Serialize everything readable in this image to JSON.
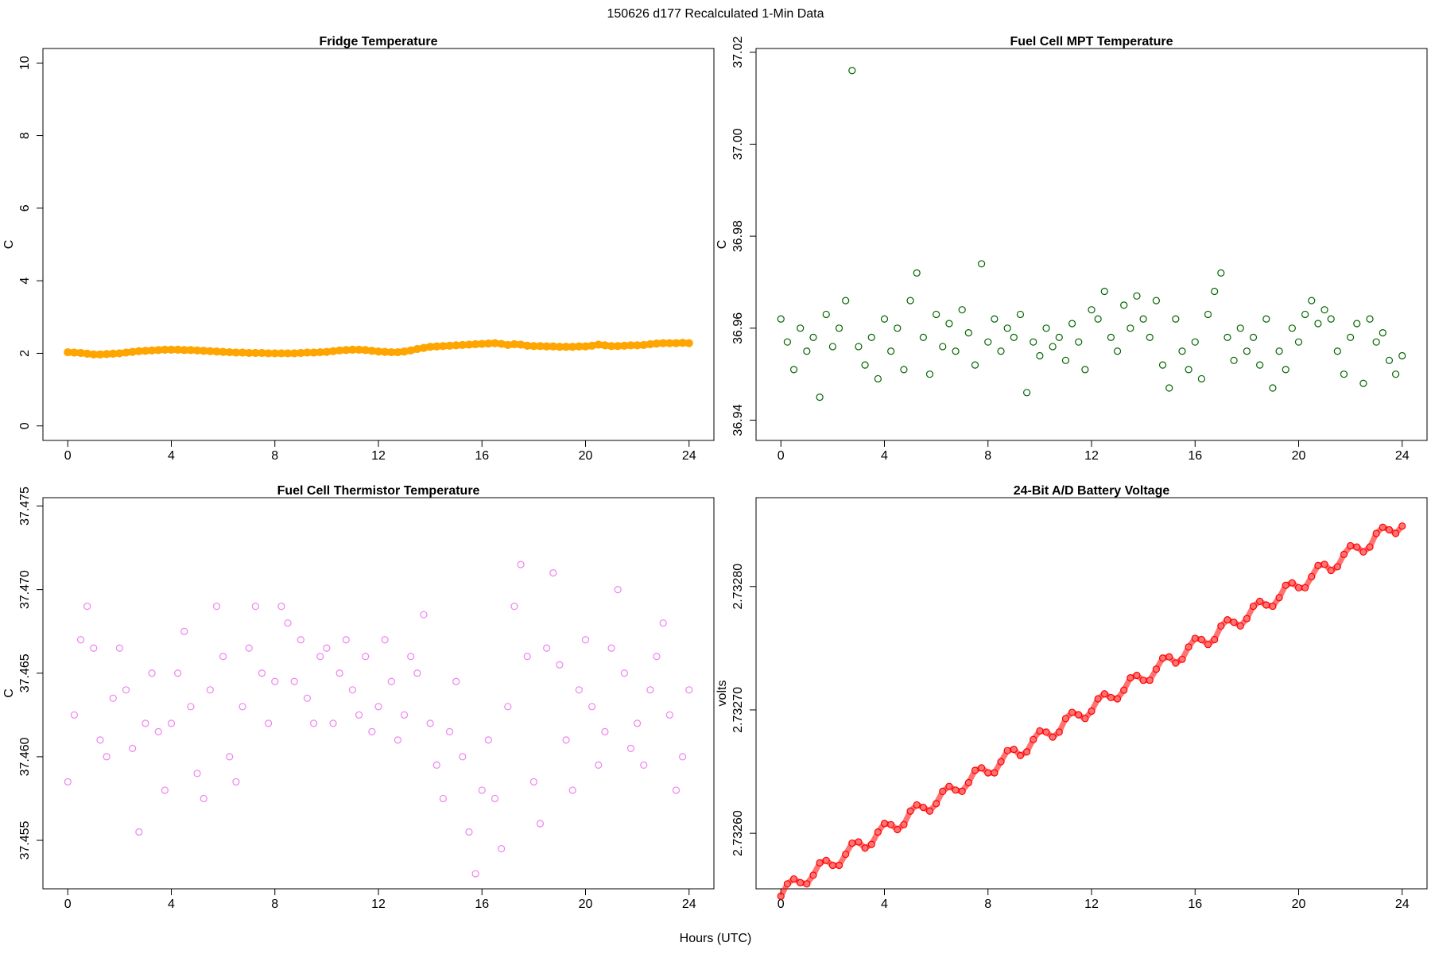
{
  "title": "150626   d177   Recalculated 1-Min Data",
  "xlabel": "Hours (UTC)",
  "chart_data": [
    {
      "type": "scatter",
      "title": "Fridge Temperature",
      "ylabel": "C",
      "color": "#ffa500",
      "marker": "filled",
      "connected": true,
      "x": [
        0,
        0.25,
        0.5,
        0.75,
        1,
        1.25,
        1.5,
        1.75,
        2,
        2.25,
        2.5,
        2.75,
        3,
        3.25,
        3.5,
        3.75,
        4,
        4.25,
        4.5,
        4.75,
        5,
        5.25,
        5.5,
        5.75,
        6,
        6.25,
        6.5,
        6.75,
        7,
        7.25,
        7.5,
        7.75,
        8,
        8.25,
        8.5,
        8.75,
        9,
        9.25,
        9.5,
        9.75,
        10,
        10.25,
        10.5,
        10.75,
        11,
        11.25,
        11.5,
        11.75,
        12,
        12.25,
        12.5,
        12.75,
        13,
        13.25,
        13.5,
        13.75,
        14,
        14.25,
        14.5,
        14.75,
        15,
        15.25,
        15.5,
        15.75,
        16,
        16.25,
        16.5,
        16.75,
        17,
        17.25,
        17.5,
        17.75,
        18,
        18.25,
        18.5,
        18.75,
        19,
        19.25,
        19.5,
        19.75,
        20,
        20.25,
        20.5,
        20.75,
        21,
        21.25,
        21.5,
        21.75,
        22,
        22.25,
        22.5,
        22.75,
        23,
        23.25,
        23.5,
        23.75,
        24
      ],
      "values": [
        2.03,
        2.02,
        2.01,
        1.99,
        1.97,
        1.97,
        1.98,
        1.99,
        2.0,
        2.02,
        2.04,
        2.06,
        2.07,
        2.08,
        2.09,
        2.1,
        2.1,
        2.1,
        2.09,
        2.09,
        2.08,
        2.07,
        2.06,
        2.05,
        2.04,
        2.03,
        2.02,
        2.02,
        2.01,
        2.01,
        2.01,
        2.0,
        2.0,
        2.0,
        2.0,
        2.0,
        2.01,
        2.02,
        2.02,
        2.03,
        2.04,
        2.06,
        2.08,
        2.09,
        2.1,
        2.1,
        2.09,
        2.07,
        2.05,
        2.04,
        2.03,
        2.03,
        2.05,
        2.08,
        2.12,
        2.15,
        2.18,
        2.19,
        2.2,
        2.21,
        2.22,
        2.23,
        2.24,
        2.25,
        2.26,
        2.27,
        2.28,
        2.26,
        2.23,
        2.25,
        2.24,
        2.21,
        2.2,
        2.2,
        2.19,
        2.19,
        2.18,
        2.18,
        2.18,
        2.19,
        2.19,
        2.21,
        2.24,
        2.22,
        2.2,
        2.2,
        2.21,
        2.22,
        2.22,
        2.23,
        2.25,
        2.27,
        2.28,
        2.28,
        2.28,
        2.29,
        2.28
      ],
      "xlim": [
        -0.96,
        24.96
      ],
      "xticks": [
        0,
        4,
        8,
        12,
        16,
        20,
        24
      ],
      "ylim": [
        -0.4,
        10.4
      ],
      "yticks": [
        0,
        2,
        4,
        6,
        8,
        10
      ]
    },
    {
      "type": "scatter",
      "title": "Fuel Cell MPT Temperature",
      "ylabel": "C",
      "color": "#006400",
      "marker": "open",
      "connected": false,
      "x": [
        0,
        0.25,
        0.5,
        0.75,
        1,
        1.25,
        1.5,
        1.75,
        2,
        2.25,
        2.5,
        2.75,
        3,
        3.25,
        3.5,
        3.75,
        4,
        4.25,
        4.5,
        4.75,
        5,
        5.25,
        5.5,
        5.75,
        6,
        6.25,
        6.5,
        6.75,
        7,
        7.25,
        7.5,
        7.75,
        8,
        8.25,
        8.5,
        8.75,
        9,
        9.25,
        9.5,
        9.75,
        10,
        10.25,
        10.5,
        10.75,
        11,
        11.25,
        11.5,
        11.75,
        12,
        12.25,
        12.5,
        12.75,
        13,
        13.25,
        13.5,
        13.75,
        14,
        14.25,
        14.5,
        14.75,
        15,
        15.25,
        15.5,
        15.75,
        16,
        16.25,
        16.5,
        16.75,
        17,
        17.25,
        17.5,
        17.75,
        18,
        18.25,
        18.5,
        18.75,
        19,
        19.25,
        19.5,
        19.75,
        20,
        20.25,
        20.5,
        20.75,
        21,
        21.25,
        21.5,
        21.75,
        22,
        22.25,
        22.5,
        22.75,
        23,
        23.25,
        23.5,
        23.75,
        24
      ],
      "values": [
        36.962,
        36.957,
        36.951,
        36.96,
        36.955,
        36.958,
        36.945,
        36.963,
        36.956,
        36.96,
        36.966,
        37.016,
        36.956,
        36.952,
        36.958,
        36.949,
        36.962,
        36.955,
        36.96,
        36.951,
        36.966,
        36.972,
        36.958,
        36.95,
        36.963,
        36.956,
        36.961,
        36.955,
        36.964,
        36.959,
        36.952,
        36.974,
        36.957,
        36.962,
        36.955,
        36.96,
        36.958,
        36.963,
        36.946,
        36.957,
        36.954,
        36.96,
        36.956,
        36.958,
        36.953,
        36.961,
        36.957,
        36.951,
        36.964,
        36.962,
        36.968,
        36.958,
        36.955,
        36.965,
        36.96,
        36.967,
        36.962,
        36.958,
        36.966,
        36.952,
        36.947,
        36.962,
        36.955,
        36.951,
        36.957,
        36.949,
        36.963,
        36.968,
        36.972,
        36.958,
        36.953,
        36.96,
        36.955,
        36.958,
        36.952,
        36.962,
        36.947,
        36.955,
        36.951,
        36.96,
        36.957,
        36.963,
        36.966,
        36.961,
        36.964,
        36.962,
        36.955,
        36.95,
        36.958,
        36.961,
        36.948,
        36.962,
        36.957,
        36.959,
        36.953,
        36.95,
        36.954
      ],
      "xlim": [
        -0.96,
        24.96
      ],
      "xticks": [
        0,
        4,
        8,
        12,
        16,
        20,
        24
      ],
      "ylim": [
        36.9356,
        37.0208
      ],
      "yticks": [
        36.94,
        36.96,
        36.98,
        {
          "value": 37.0,
          "label": "37.00"
        },
        37.02
      ]
    },
    {
      "type": "scatter",
      "title": "Fuel Cell Thermistor Temperature",
      "ylabel": "C",
      "color": "#ee82ee",
      "marker": "open",
      "connected": false,
      "x": [
        0,
        0.25,
        0.5,
        0.75,
        1,
        1.25,
        1.5,
        1.75,
        2,
        2.25,
        2.5,
        2.75,
        3,
        3.25,
        3.5,
        3.75,
        4,
        4.25,
        4.5,
        4.75,
        5,
        5.25,
        5.5,
        5.75,
        6,
        6.25,
        6.5,
        6.75,
        7,
        7.25,
        7.5,
        7.75,
        8,
        8.25,
        8.5,
        8.75,
        9,
        9.25,
        9.5,
        9.75,
        10,
        10.25,
        10.5,
        10.75,
        11,
        11.25,
        11.5,
        11.75,
        12,
        12.25,
        12.5,
        12.75,
        13,
        13.25,
        13.5,
        13.75,
        14,
        14.25,
        14.5,
        14.75,
        15,
        15.25,
        15.5,
        15.75,
        16,
        16.25,
        16.5,
        16.75,
        17,
        17.25,
        17.5,
        17.75,
        18,
        18.25,
        18.5,
        18.75,
        19,
        19.25,
        19.5,
        19.75,
        20,
        20.25,
        20.5,
        20.75,
        21,
        21.25,
        21.5,
        21.75,
        22,
        22.25,
        22.5,
        22.75,
        23,
        23.25,
        23.5,
        23.75,
        24
      ],
      "values": [
        37.4585,
        37.4625,
        37.467,
        37.469,
        37.4665,
        37.461,
        37.46,
        37.4635,
        37.4665,
        37.464,
        37.4605,
        37.4555,
        37.462,
        37.465,
        37.4615,
        37.458,
        37.462,
        37.465,
        37.4675,
        37.463,
        37.459,
        37.4575,
        37.464,
        37.469,
        37.466,
        37.46,
        37.4585,
        37.463,
        37.4665,
        37.469,
        37.465,
        37.462,
        37.4645,
        37.469,
        37.468,
        37.4645,
        37.467,
        37.4635,
        37.462,
        37.466,
        37.4665,
        37.462,
        37.465,
        37.467,
        37.464,
        37.4625,
        37.466,
        37.4615,
        37.463,
        37.467,
        37.4645,
        37.461,
        37.4625,
        37.466,
        37.465,
        37.4685,
        37.462,
        37.4595,
        37.4575,
        37.4615,
        37.4645,
        37.46,
        37.4555,
        37.453,
        37.458,
        37.461,
        37.4575,
        37.4545,
        37.463,
        37.469,
        37.4715,
        37.466,
        37.4585,
        37.456,
        37.4665,
        37.471,
        37.4655,
        37.461,
        37.458,
        37.464,
        37.467,
        37.463,
        37.4595,
        37.4615,
        37.4665,
        37.47,
        37.465,
        37.4605,
        37.462,
        37.4595,
        37.464,
        37.466,
        37.468,
        37.4625,
        37.458,
        37.46,
        37.464
      ],
      "xlim": [
        -0.96,
        24.96
      ],
      "xticks": [
        0,
        4,
        8,
        12,
        16,
        20,
        24
      ],
      "ylim": [
        37.4521,
        37.4755
      ],
      "yticks": [
        37.455,
        {
          "value": 37.46,
          "label": "37.460"
        },
        37.465,
        {
          "value": 37.47,
          "label": "37.470"
        },
        37.475
      ]
    },
    {
      "type": "scatter",
      "title": "24-Bit A/D Battery Voltage",
      "ylabel": "volts",
      "color": "#ff0000",
      "marker": "open",
      "connected": true,
      "x": [
        0,
        0.25,
        0.5,
        0.75,
        1,
        1.25,
        1.5,
        1.75,
        2,
        2.25,
        2.5,
        2.75,
        3,
        3.25,
        3.5,
        3.75,
        4,
        4.25,
        4.5,
        4.75,
        5,
        5.25,
        5.5,
        5.75,
        6,
        6.25,
        6.5,
        6.75,
        7,
        7.25,
        7.5,
        7.75,
        8,
        8.25,
        8.5,
        8.75,
        9,
        9.25,
        9.5,
        9.75,
        10,
        10.25,
        10.5,
        10.75,
        11,
        11.25,
        11.5,
        11.75,
        12,
        12.25,
        12.5,
        12.75,
        13,
        13.25,
        13.5,
        13.75,
        14,
        14.25,
        14.5,
        14.75,
        15,
        15.25,
        15.5,
        15.75,
        16,
        16.25,
        16.5,
        16.75,
        17,
        17.25,
        17.5,
        17.75,
        18,
        18.25,
        18.5,
        18.75,
        19,
        19.25,
        19.5,
        19.75,
        20,
        20.25,
        20.5,
        20.75,
        21,
        21.25,
        21.5,
        21.75,
        22,
        22.25,
        22.5,
        22.75,
        23,
        23.25,
        23.5,
        23.75,
        24
      ],
      "values": [
        2.732549,
        2.732559,
        2.732563,
        2.73256,
        2.732559,
        2.732566,
        2.732576,
        2.732578,
        2.732574,
        2.732574,
        2.732583,
        2.732592,
        2.732593,
        2.732588,
        2.732591,
        2.732601,
        2.732608,
        2.732607,
        2.732603,
        2.732607,
        2.732618,
        2.732623,
        2.732621,
        2.732618,
        2.732624,
        2.732634,
        2.732638,
        2.732635,
        2.732634,
        2.732641,
        2.732651,
        2.732653,
        2.732649,
        2.732649,
        2.732658,
        2.732667,
        2.732668,
        2.732663,
        2.732666,
        2.732676,
        2.732683,
        2.732682,
        2.732678,
        2.732682,
        2.732693,
        2.732698,
        2.732696,
        2.732693,
        2.732699,
        2.732709,
        2.732713,
        2.73271,
        2.732709,
        2.732716,
        2.732726,
        2.732728,
        2.732724,
        2.732724,
        2.732733,
        2.732742,
        2.732743,
        2.732738,
        2.732741,
        2.732751,
        2.732758,
        2.732757,
        2.732753,
        2.732757,
        2.732768,
        2.732773,
        2.732771,
        2.732768,
        2.732774,
        2.732784,
        2.732788,
        2.732785,
        2.732784,
        2.732791,
        2.732801,
        2.732803,
        2.732799,
        2.732799,
        2.732808,
        2.732817,
        2.732818,
        2.732813,
        2.732816,
        2.732826,
        2.732833,
        2.732832,
        2.732828,
        2.732832,
        2.732843,
        2.732848,
        2.732846,
        2.732843,
        2.732849
      ],
      "xlim": [
        -0.96,
        24.96
      ],
      "xticks": [
        0,
        4,
        8,
        12,
        16,
        20,
        24
      ],
      "ylim": [
        2.732555,
        2.732872
      ],
      "yticks": [
        {
          "value": 2.7326,
          "label": "2.73260"
        },
        {
          "value": 2.7327,
          "label": "2.73270"
        },
        {
          "value": 2.7328,
          "label": "2.73280"
        }
      ]
    }
  ]
}
